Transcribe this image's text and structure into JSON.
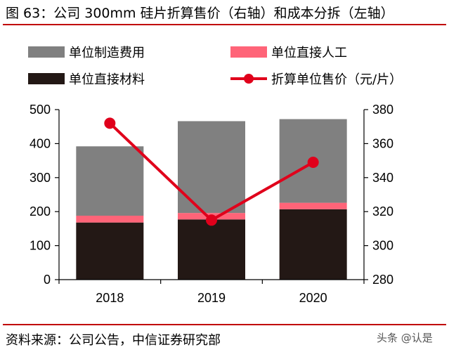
{
  "title": "图 63：公司 300mm 硅片折算售价（右轴）和成本分拆（左轴）",
  "source": "资料来源：公司公告，中信证券研究部",
  "watermark": "头条 @认是",
  "chart_data": {
    "type": "bar",
    "stacked": true,
    "categories": [
      "2018",
      "2019",
      "2020"
    ],
    "series": [
      {
        "name": "单位直接材料",
        "axis": "left",
        "color": "#231815",
        "values": [
          168,
          177,
          207
        ]
      },
      {
        "name": "单位直接人工",
        "axis": "left",
        "color": "#ff6478",
        "values": [
          20,
          19,
          19
        ]
      },
      {
        "name": "单位制造费用",
        "axis": "left",
        "color": "#808080",
        "values": [
          204,
          270,
          246
        ]
      },
      {
        "name": "折算单位售价（元/片）",
        "axis": "right",
        "type": "line",
        "color": "#e0001b",
        "values": [
          372,
          315,
          349
        ]
      }
    ],
    "left_axis": {
      "min": 0,
      "max": 500,
      "ticks": [
        "0",
        "100",
        "200",
        "300",
        "400",
        "500"
      ]
    },
    "right_axis": {
      "min": 280,
      "max": 380,
      "ticks": [
        "280",
        "300",
        "320",
        "340",
        "360",
        "380"
      ]
    },
    "legend": [
      {
        "label": "单位制造费用",
        "marker": "box",
        "color": "#808080"
      },
      {
        "label": "单位直接人工",
        "marker": "box",
        "color": "#ff6478"
      },
      {
        "label": "单位直接材料",
        "marker": "box",
        "color": "#231815"
      },
      {
        "label": "折算单位售价（元/片）",
        "marker": "line-dot",
        "color": "#e0001b"
      }
    ],
    "legend_position": "top",
    "grid": false
  }
}
